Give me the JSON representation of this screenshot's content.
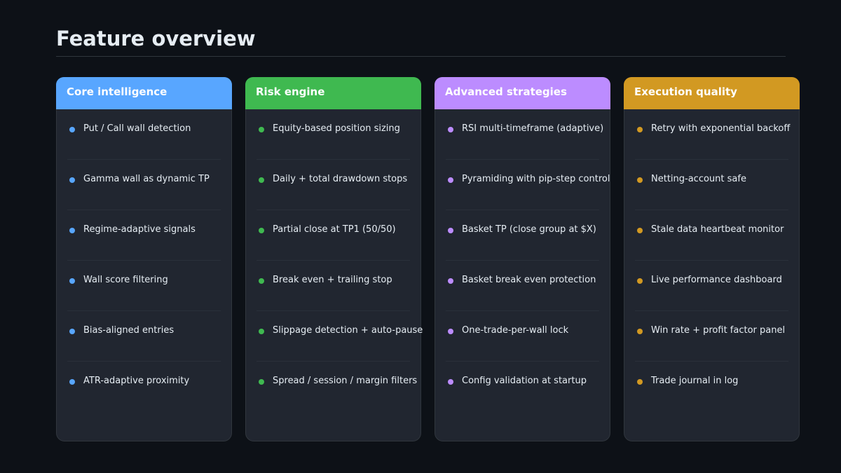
{
  "header": {
    "title": "Feature overview"
  },
  "columns": [
    {
      "title": "Core intelligence",
      "color": "#58a6ff",
      "items": [
        "Put / Call wall detection",
        "Gamma wall as dynamic TP",
        "Regime-adaptive signals",
        "Wall score filtering",
        "Bias-aligned entries",
        "ATR-adaptive proximity"
      ]
    },
    {
      "title": "Risk engine",
      "color": "#3fb950",
      "items": [
        "Equity-based position sizing",
        "Daily + total drawdown stops",
        "Partial close at TP1 (50/50)",
        "Break even + trailing stop",
        "Slippage detection + auto-pause",
        "Spread / session / margin filters"
      ]
    },
    {
      "title": "Advanced strategies",
      "color": "#bc8cff",
      "items": [
        "RSI multi-timeframe (adaptive)",
        "Pyramiding with pip-step control",
        "Basket TP (close group at $X)",
        "Basket break even protection",
        "One-trade-per-wall lock",
        "Config validation at startup"
      ]
    },
    {
      "title": "Execution quality",
      "color": "#d29922",
      "items": [
        "Retry with exponential backoff",
        "Netting-account safe",
        "Stale data heartbeat monitor",
        "Live performance dashboard",
        "Win rate + profit factor panel",
        "Trade journal in log"
      ]
    }
  ]
}
